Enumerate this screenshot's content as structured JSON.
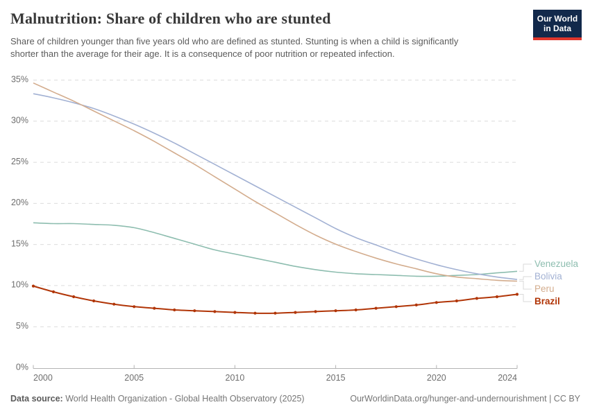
{
  "header": {
    "title": "Malnutrition: Share of children who are stunted",
    "subtitle": "Share of children younger than five years old who are defined as stunted. Stunting is when a child is significantly\nshorter than the average for their age. It is a consequence of poor nutrition or repeated infection.",
    "logo": {
      "line1": "Our World",
      "line2": "in Data",
      "bg_color": "#12294B",
      "accent_color": "#E0362C"
    }
  },
  "chart_data": {
    "type": "line",
    "title": "Malnutrition: Share of children who are stunted",
    "xlabel": "",
    "ylabel": "",
    "x": [
      2000,
      2001,
      2002,
      2003,
      2004,
      2005,
      2006,
      2007,
      2008,
      2009,
      2010,
      2011,
      2012,
      2013,
      2014,
      2015,
      2016,
      2017,
      2018,
      2019,
      2020,
      2021,
      2022,
      2023,
      2024
    ],
    "series": [
      {
        "name": "Venezuela",
        "color": "#8DBDAF",
        "focused": false,
        "values": [
          17.6,
          17.5,
          17.5,
          17.4,
          17.3,
          17.0,
          16.4,
          15.7,
          15.0,
          14.3,
          13.8,
          13.3,
          12.8,
          12.3,
          11.9,
          11.6,
          11.4,
          11.3,
          11.2,
          11.1,
          11.1,
          11.2,
          11.3,
          11.5,
          11.7
        ]
      },
      {
        "name": "Bolivia",
        "color": "#A2B1D3",
        "focused": false,
        "values": [
          33.3,
          32.8,
          32.2,
          31.5,
          30.6,
          29.6,
          28.5,
          27.3,
          26.0,
          24.7,
          23.4,
          22.1,
          20.8,
          19.5,
          18.2,
          16.9,
          15.8,
          14.9,
          14.0,
          13.2,
          12.5,
          11.9,
          11.4,
          11.0,
          10.7
        ]
      },
      {
        "name": "Peru",
        "color": "#D3AC8D",
        "focused": false,
        "values": [
          34.6,
          33.5,
          32.4,
          31.2,
          30.0,
          28.8,
          27.5,
          26.1,
          24.7,
          23.2,
          21.7,
          20.2,
          18.8,
          17.4,
          16.1,
          15.0,
          14.1,
          13.3,
          12.6,
          12.0,
          11.4,
          11.0,
          10.8,
          10.6,
          10.5
        ]
      },
      {
        "name": "Brazil",
        "color": "#B13507",
        "focused": true,
        "values": [
          9.9,
          9.2,
          8.6,
          8.1,
          7.7,
          7.4,
          7.2,
          7.0,
          6.9,
          6.8,
          6.7,
          6.6,
          6.6,
          6.7,
          6.8,
          6.9,
          7.0,
          7.2,
          7.4,
          7.6,
          7.9,
          8.1,
          8.4,
          8.6,
          8.9
        ]
      }
    ],
    "ylim": [
      0,
      35
    ],
    "yticks": [
      0,
      5,
      10,
      15,
      20,
      25,
      30,
      35
    ],
    "ytick_suffix": "%",
    "xticks": [
      2000,
      2005,
      2010,
      2015,
      2020,
      2024
    ],
    "grid": "dashed-horizontal",
    "grid_color": "#dcdcdc",
    "axis_color": "#b3b3b3",
    "tick_label_color": "#6e6e6e",
    "legend_position": "right"
  },
  "footer": {
    "source_label": "Data source:",
    "source_text": "World Health Organization - Global Health Observatory (2025)",
    "link_text": "OurWorldinData.org/hunger-and-undernourishment | CC BY"
  }
}
